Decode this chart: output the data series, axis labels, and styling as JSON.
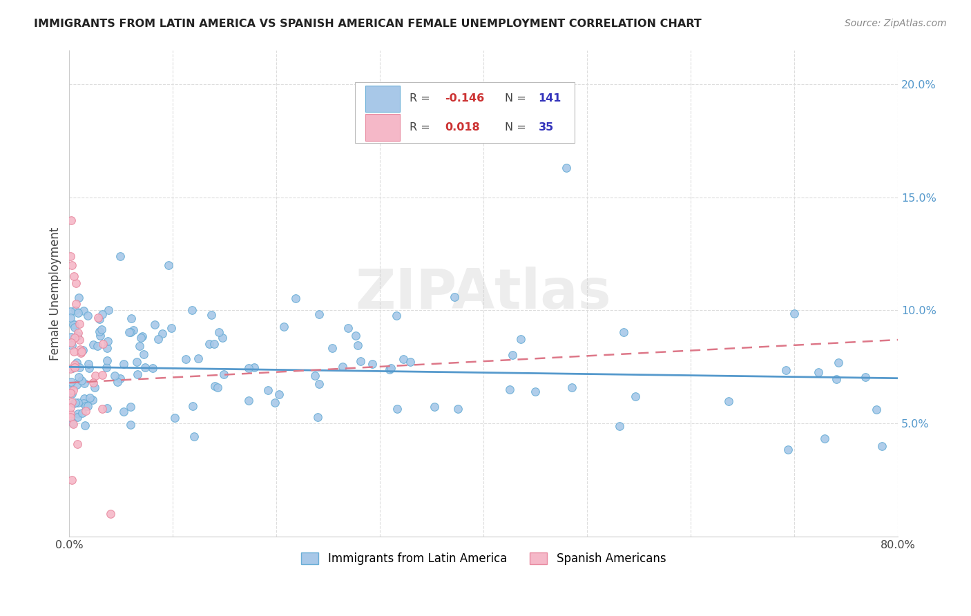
{
  "title": "IMMIGRANTS FROM LATIN AMERICA VS SPANISH AMERICAN FEMALE UNEMPLOYMENT CORRELATION CHART",
  "source": "Source: ZipAtlas.com",
  "ylabel": "Female Unemployment",
  "xmin": 0.0,
  "xmax": 0.8,
  "ymin": 0.0,
  "ymax": 0.215,
  "yticks": [
    0.05,
    0.1,
    0.15,
    0.2
  ],
  "ytick_labels": [
    "5.0%",
    "10.0%",
    "15.0%",
    "20.0%"
  ],
  "xticks": [
    0.0,
    0.1,
    0.2,
    0.3,
    0.4,
    0.5,
    0.6,
    0.7,
    0.8
  ],
  "xtick_labels": [
    "0.0%",
    "",
    "",
    "",
    "",
    "",
    "",
    "",
    "80.0%"
  ],
  "blue_fill": "#a8c8e8",
  "blue_edge": "#6aaed6",
  "pink_fill": "#f5b8c8",
  "pink_edge": "#e88aa0",
  "blue_line_color": "#5599cc",
  "pink_line_color": "#dd7788",
  "legend_label_blue": "Immigrants from Latin America",
  "legend_label_pink": "Spanish Americans",
  "R_blue": -0.146,
  "N_blue": 141,
  "R_pink": 0.018,
  "N_pink": 35,
  "R_color": "#cc3333",
  "N_color": "#3333bb",
  "watermark": "ZIPAtlas",
  "watermark_color": "#cccccc",
  "title_color": "#222222",
  "source_color": "#888888",
  "grid_color": "#dddddd",
  "spine_color": "#cccccc",
  "blue_trend_start_y": 0.075,
  "blue_trend_end_y": 0.07,
  "pink_trend_start_y": 0.068,
  "pink_trend_end_y": 0.087
}
